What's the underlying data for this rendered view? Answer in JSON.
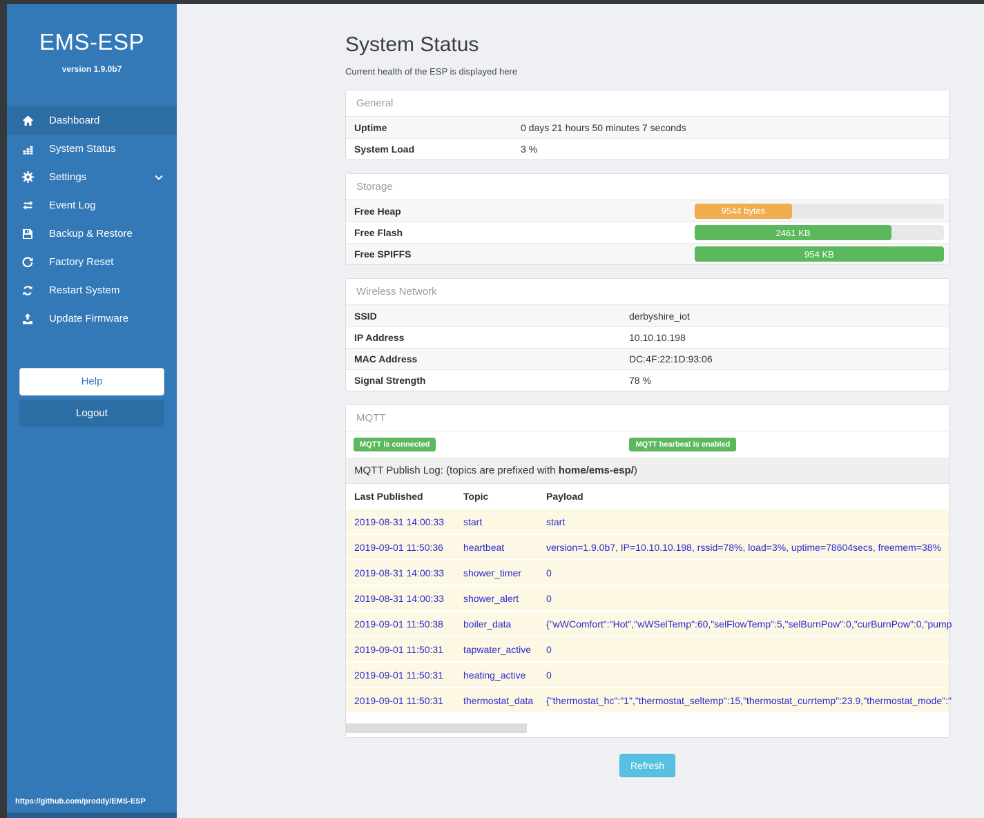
{
  "sidebar": {
    "title": "EMS-ESP",
    "version": "version 1.9.0b7",
    "items": [
      {
        "icon": "home-icon",
        "label": "Dashboard"
      },
      {
        "icon": "bar-chart-icon",
        "label": "System Status"
      },
      {
        "icon": "gear-icon",
        "label": "Settings"
      },
      {
        "icon": "exchange-icon",
        "label": "Event Log"
      },
      {
        "icon": "save-icon",
        "label": "Backup & Restore"
      },
      {
        "icon": "rotate-icon",
        "label": "Factory Reset"
      },
      {
        "icon": "sync-icon",
        "label": "Restart System"
      },
      {
        "icon": "upload-icon",
        "label": "Update Firmware"
      }
    ],
    "help_label": "Help",
    "logout_label": "Logout",
    "footer_url": "https://github.com/proddy/EMS-ESP"
  },
  "page": {
    "title": "System Status",
    "subtitle": "Current health of the ESP is displayed here",
    "refresh_label": "Refresh"
  },
  "colors": {
    "warning_bar": "#f0ad4e",
    "success_bar": "#5cb85c",
    "badge_green": "#5cb85c",
    "sidebar_blue": "#3379b7",
    "link_blue": "#2a2ad0"
  },
  "general": {
    "header": "General",
    "rows": [
      {
        "label": "Uptime",
        "value": "0 days 21 hours 50 minutes 7 seconds"
      },
      {
        "label": "System Load",
        "value": "3 %"
      }
    ]
  },
  "storage": {
    "header": "Storage",
    "rows": [
      {
        "label": "Free Heap",
        "value": "9544 bytes",
        "percent": 39,
        "color": "#f0ad4e"
      },
      {
        "label": "Free Flash",
        "value": "2461 KB",
        "percent": 79,
        "color": "#5cb85c"
      },
      {
        "label": "Free SPIFFS",
        "value": "954 KB",
        "percent": 100,
        "color": "#5cb85c"
      }
    ]
  },
  "wireless": {
    "header": "Wireless Network",
    "rows": [
      {
        "label": "SSID",
        "value": "derbyshire_iot"
      },
      {
        "label": "IP Address",
        "value": "10.10.10.198"
      },
      {
        "label": "MAC Address",
        "value": "DC:4F:22:1D:93:06"
      },
      {
        "label": "Signal Strength",
        "value": "78 %"
      }
    ]
  },
  "mqtt": {
    "header": "MQTT",
    "badges": [
      "MQTT is connected",
      "MQTT hearbeat is enabled"
    ],
    "publish_log_text": "MQTT Publish Log: (topics are prefixed with ",
    "publish_log_bold": "home/ems-esp/",
    "publish_log_suffix": ")",
    "columns": [
      "Last Published",
      "Topic",
      "Payload"
    ],
    "rows": [
      {
        "time": "2019-08-31 14:00:33",
        "topic": "start",
        "payload": "start"
      },
      {
        "time": "2019-09-01 11:50:36",
        "topic": "heartbeat",
        "payload": "version=1.9.0b7, IP=10.10.10.198, rssid=78%, load=3%, uptime=78604secs, freemem=38%"
      },
      {
        "time": "2019-08-31 14:00:33",
        "topic": "shower_timer",
        "payload": "0"
      },
      {
        "time": "2019-08-31 14:00:33",
        "topic": "shower_alert",
        "payload": "0"
      },
      {
        "time": "2019-09-01 11:50:38",
        "topic": "boiler_data",
        "payload": "{\"wWComfort\":\"Hot\",\"wWSelTemp\":60,\"selFlowTemp\":5,\"selBurnPow\":0,\"curBurnPow\":0,\"pump"
      },
      {
        "time": "2019-09-01 11:50:31",
        "topic": "tapwater_active",
        "payload": "0"
      },
      {
        "time": "2019-09-01 11:50:31",
        "topic": "heating_active",
        "payload": "0"
      },
      {
        "time": "2019-09-01 11:50:31",
        "topic": "thermostat_data",
        "payload": "{\"thermostat_hc\":\"1\",\"thermostat_seltemp\":15,\"thermostat_currtemp\":23.9,\"thermostat_mode\":\""
      }
    ]
  }
}
